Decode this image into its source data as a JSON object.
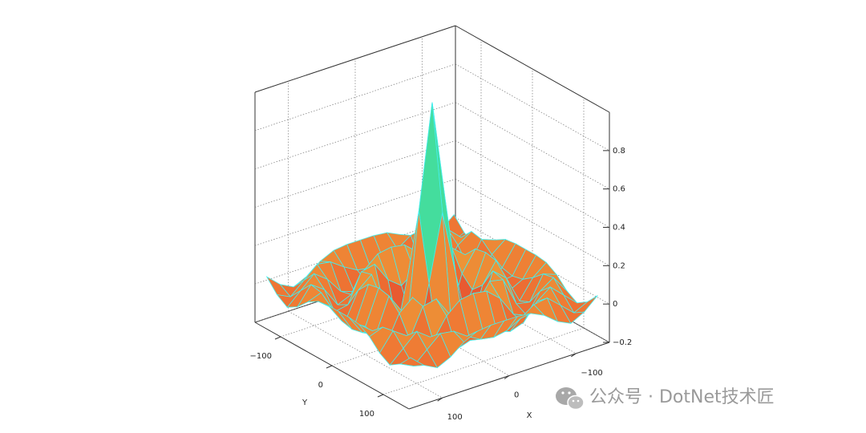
{
  "chart_data": {
    "type": "surface",
    "xlabel": "X",
    "ylabel": "Y",
    "x": [
      -140,
      -120,
      -100,
      -80,
      -60,
      -40,
      -20,
      0,
      20,
      40,
      60,
      80,
      100,
      120,
      140
    ],
    "y": [
      -140,
      -120,
      -100,
      -80,
      -60,
      -40,
      -20,
      0,
      20,
      40,
      60,
      80,
      100,
      120,
      140
    ],
    "z": [
      [
        0.041,
        -0.022,
        -0.058,
        -0.025,
        0.03,
        0.063,
        0.071,
        0.071,
        0.071,
        0.063,
        0.03,
        -0.025,
        -0.058,
        -0.022,
        0.041
      ],
      [
        -0.022,
        -0.056,
        0.006,
        0.067,
        0.056,
        0.007,
        -0.032,
        -0.045,
        -0.032,
        0.007,
        0.056,
        0.067,
        0.006,
        -0.056,
        -0.022
      ],
      [
        -0.058,
        0.006,
        0.071,
        0.019,
        -0.067,
        -0.091,
        -0.068,
        -0.054,
        -0.068,
        -0.091,
        -0.067,
        0.019,
        0.071,
        0.006,
        -0.058
      ],
      [
        -0.025,
        0.067,
        0.019,
        -0.084,
        -0.054,
        0.052,
        0.112,
        0.124,
        0.112,
        0.052,
        -0.054,
        -0.084,
        0.019,
        0.067,
        -0.025
      ],
      [
        0.03,
        0.056,
        -0.067,
        -0.054,
        0.095,
        0.111,
        0.007,
        -0.047,
        0.007,
        0.111,
        0.095,
        -0.054,
        -0.067,
        0.056,
        0.03
      ],
      [
        0.063,
        0.007,
        -0.091,
        0.052,
        0.111,
        -0.104,
        -0.217,
        -0.189,
        -0.217,
        -0.104,
        0.111,
        0.052,
        -0.091,
        0.007,
        0.063
      ],
      [
        0.071,
        -0.032,
        -0.068,
        0.112,
        0.007,
        -0.217,
        0.109,
        0.455,
        0.109,
        -0.217,
        0.007,
        0.112,
        -0.068,
        -0.032,
        0.071
      ],
      [
        0.071,
        -0.045,
        -0.054,
        0.124,
        -0.047,
        -0.189,
        0.455,
        1,
        0.455,
        -0.189,
        -0.047,
        0.124,
        -0.054,
        -0.045,
        0.071
      ],
      [
        0.071,
        -0.032,
        -0.068,
        0.112,
        0.007,
        -0.217,
        0.109,
        0.455,
        0.109,
        -0.217,
        0.007,
        0.112,
        -0.068,
        -0.032,
        0.071
      ],
      [
        0.063,
        0.007,
        -0.091,
        0.052,
        0.111,
        -0.104,
        -0.217,
        -0.189,
        -0.217,
        -0.104,
        0.111,
        0.052,
        -0.091,
        0.007,
        0.063
      ],
      [
        0.03,
        0.056,
        -0.067,
        -0.054,
        0.095,
        0.111,
        0.007,
        -0.047,
        0.007,
        0.111,
        0.095,
        -0.054,
        -0.067,
        0.056,
        0.03
      ],
      [
        -0.025,
        0.067,
        0.019,
        -0.084,
        -0.054,
        0.052,
        0.112,
        0.124,
        0.112,
        0.052,
        -0.054,
        -0.084,
        0.019,
        0.067,
        -0.025
      ],
      [
        -0.058,
        0.006,
        0.071,
        0.019,
        -0.067,
        -0.091,
        -0.068,
        -0.054,
        -0.068,
        -0.091,
        -0.067,
        0.019,
        0.071,
        0.006,
        -0.058
      ],
      [
        -0.022,
        -0.056,
        0.006,
        0.067,
        0.056,
        0.007,
        -0.032,
        -0.045,
        -0.032,
        0.007,
        0.056,
        0.067,
        0.006,
        -0.056,
        -0.022
      ],
      [
        0.041,
        -0.022,
        -0.058,
        -0.025,
        0.03,
        0.063,
        0.071,
        0.071,
        0.071,
        0.063,
        0.03,
        -0.025,
        -0.058,
        -0.022,
        0.041
      ]
    ],
    "xlim": [
      -150,
      150
    ],
    "ylim": [
      -150,
      150
    ],
    "zlim": [
      -0.2,
      1.0
    ],
    "xticks": [
      {
        "value": -100,
        "label": "−100"
      },
      0,
      100
    ],
    "yticks": [
      {
        "value": -100,
        "label": "−100"
      },
      0,
      100
    ],
    "zticks": [
      {
        "value": -0.2,
        "label": "−0.2"
      },
      0,
      0.2,
      0.4,
      0.6,
      0.8
    ],
    "grid": true,
    "colormap": [
      "#e2402e",
      "#ef7a34",
      "#e6c43c",
      "#6ada58",
      "#22e0dc",
      "#1478e0",
      "#0018a8"
    ],
    "edge_color": "#44eeee"
  },
  "watermark": "公众号 · DotNet技术匠"
}
